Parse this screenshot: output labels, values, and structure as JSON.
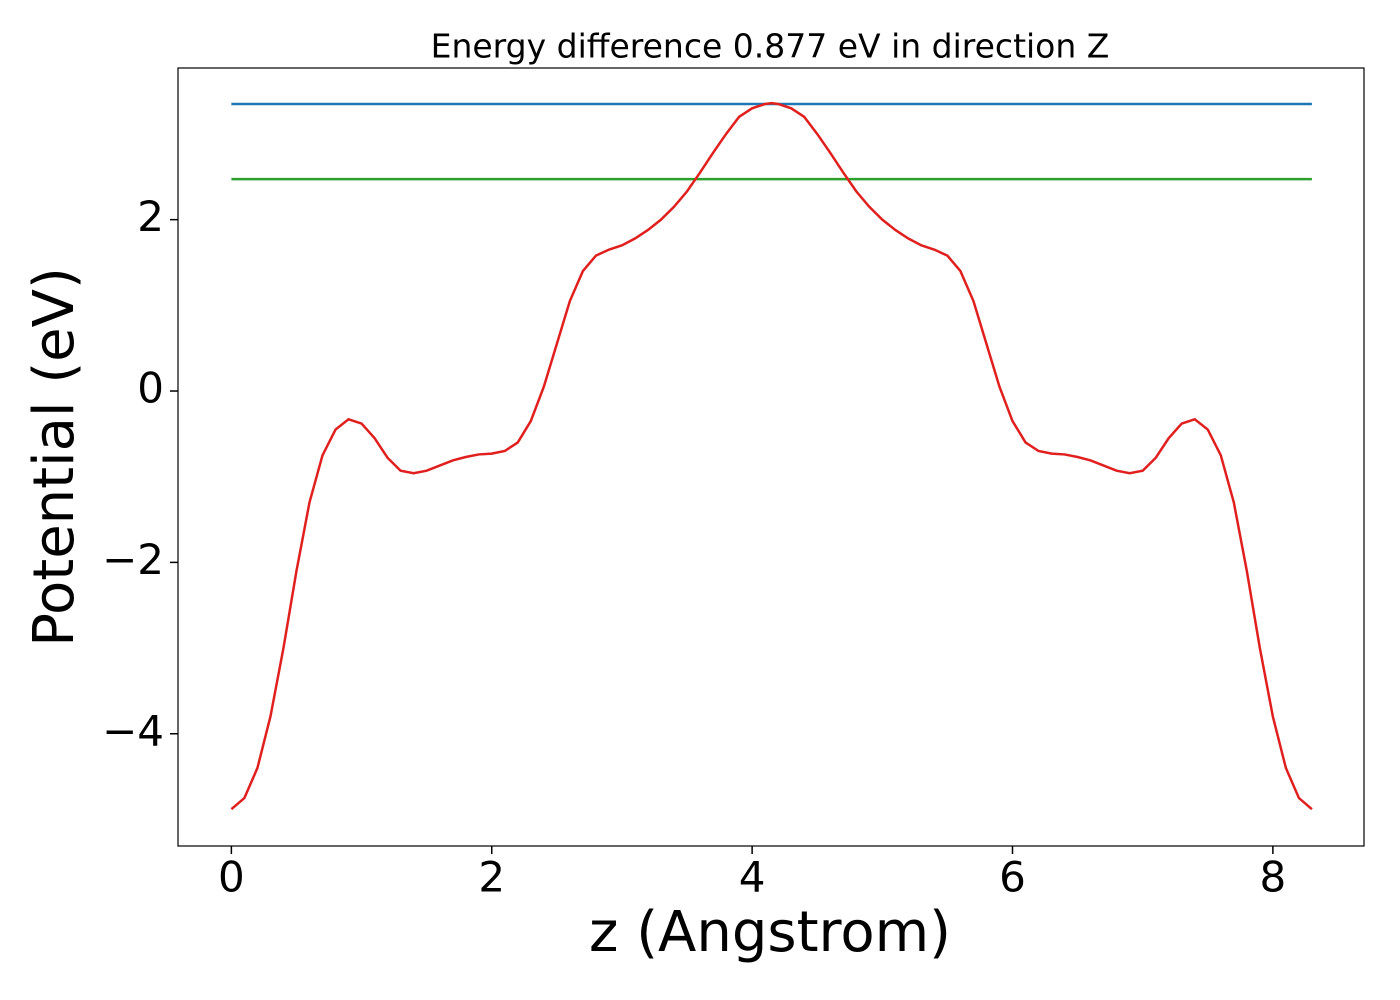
{
  "chart_data": {
    "type": "line",
    "title": "Energy difference 0.877 eV in direction Z",
    "xlabel": "z (Angstrom)",
    "ylabel": "Potential (eV)",
    "xlim": [
      -0.41,
      8.7
    ],
    "ylim": [
      -5.31,
      3.77
    ],
    "xticks": [
      0,
      2,
      4,
      6,
      8
    ],
    "yticks": [
      {
        "value": -4,
        "label": "−4"
      },
      {
        "value": -2,
        "label": "−2"
      },
      0,
      2
    ],
    "grid": false,
    "series": [
      {
        "color": "#1f77b4",
        "x": [
          0,
          8.3
        ],
        "values": [
          3.35,
          3.35
        ]
      },
      {
        "color": "#2ca02c",
        "x": [
          0,
          8.3
        ],
        "values": [
          2.473,
          2.473
        ]
      },
      {
        "color": "#e0201e",
        "x": [
          0,
          0.1,
          0.2,
          0.3,
          0.4,
          0.5,
          0.6,
          0.7,
          0.8,
          0.9,
          1.0,
          1.1,
          1.2,
          1.3,
          1.4,
          1.5,
          1.6,
          1.7,
          1.8,
          1.9,
          2.0,
          2.1,
          2.2,
          2.3,
          2.4,
          2.5,
          2.6,
          2.7,
          2.8,
          2.9,
          3.0,
          3.1,
          3.2,
          3.3,
          3.4,
          3.5,
          3.6,
          3.7,
          3.8,
          3.9,
          4.0,
          4.1,
          4.15,
          4.2,
          4.3,
          4.4,
          4.5,
          4.6,
          4.7,
          4.8,
          4.9,
          5.0,
          5.1,
          5.2,
          5.3,
          5.4,
          5.5,
          5.6,
          5.7,
          5.8,
          5.9,
          6.0,
          6.1,
          6.2,
          6.3,
          6.4,
          6.5,
          6.6,
          6.7,
          6.8,
          6.9,
          7.0,
          7.1,
          7.2,
          7.3,
          7.4,
          7.5,
          7.6,
          7.7,
          7.8,
          7.9,
          8.0,
          8.1,
          8.2,
          8.3
        ],
        "values": [
          -4.88,
          -4.75,
          -4.4,
          -3.8,
          -3.0,
          -2.1,
          -1.3,
          -0.75,
          -0.45,
          -0.33,
          -0.38,
          -0.55,
          -0.78,
          -0.93,
          -0.96,
          -0.93,
          -0.87,
          -0.81,
          -0.77,
          -0.74,
          -0.73,
          -0.7,
          -0.6,
          -0.35,
          0.05,
          0.55,
          1.05,
          1.4,
          1.58,
          1.65,
          1.7,
          1.78,
          1.88,
          2.0,
          2.15,
          2.33,
          2.55,
          2.78,
          3.0,
          3.2,
          3.3,
          3.35,
          3.36,
          3.35,
          3.3,
          3.2,
          3.0,
          2.78,
          2.55,
          2.33,
          2.15,
          2.0,
          1.88,
          1.78,
          1.7,
          1.65,
          1.58,
          1.4,
          1.05,
          0.55,
          0.05,
          -0.35,
          -0.6,
          -0.7,
          -0.73,
          -0.74,
          -0.77,
          -0.81,
          -0.87,
          -0.93,
          -0.96,
          -0.93,
          -0.78,
          -0.55,
          -0.38,
          -0.33,
          -0.45,
          -0.75,
          -1.3,
          -2.1,
          -3.0,
          -3.8,
          -4.4,
          -4.75,
          -4.88
        ]
      }
    ]
  }
}
